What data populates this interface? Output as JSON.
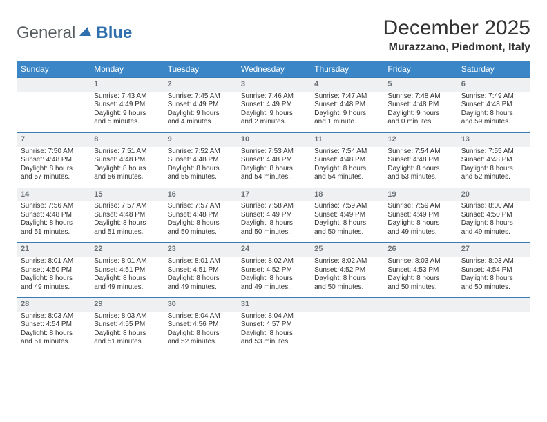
{
  "brand": {
    "word1": "General",
    "word2": "Blue",
    "logo_gray": "#555b5f",
    "logo_blue": "#2f6fae",
    "sail_color": "#2f6fae"
  },
  "title": "December 2025",
  "location": "Murazzano, Piedmont, Italy",
  "colors": {
    "header_bg": "#3b86c6",
    "header_border": "#3a7ab5",
    "daynum_bg": "#eef0f1",
    "daynum_text": "#6a7278",
    "body_text": "#333333",
    "page_bg": "#ffffff"
  },
  "day_labels": [
    "Sunday",
    "Monday",
    "Tuesday",
    "Wednesday",
    "Thursday",
    "Friday",
    "Saturday"
  ],
  "weeks": [
    [
      {
        "num": "",
        "sunrise": "",
        "sunset": "",
        "day1": "",
        "day2": ""
      },
      {
        "num": "1",
        "sunrise": "Sunrise: 7:43 AM",
        "sunset": "Sunset: 4:49 PM",
        "day1": "Daylight: 9 hours",
        "day2": "and 5 minutes."
      },
      {
        "num": "2",
        "sunrise": "Sunrise: 7:45 AM",
        "sunset": "Sunset: 4:49 PM",
        "day1": "Daylight: 9 hours",
        "day2": "and 4 minutes."
      },
      {
        "num": "3",
        "sunrise": "Sunrise: 7:46 AM",
        "sunset": "Sunset: 4:49 PM",
        "day1": "Daylight: 9 hours",
        "day2": "and 2 minutes."
      },
      {
        "num": "4",
        "sunrise": "Sunrise: 7:47 AM",
        "sunset": "Sunset: 4:48 PM",
        "day1": "Daylight: 9 hours",
        "day2": "and 1 minute."
      },
      {
        "num": "5",
        "sunrise": "Sunrise: 7:48 AM",
        "sunset": "Sunset: 4:48 PM",
        "day1": "Daylight: 9 hours",
        "day2": "and 0 minutes."
      },
      {
        "num": "6",
        "sunrise": "Sunrise: 7:49 AM",
        "sunset": "Sunset: 4:48 PM",
        "day1": "Daylight: 8 hours",
        "day2": "and 59 minutes."
      }
    ],
    [
      {
        "num": "7",
        "sunrise": "Sunrise: 7:50 AM",
        "sunset": "Sunset: 4:48 PM",
        "day1": "Daylight: 8 hours",
        "day2": "and 57 minutes."
      },
      {
        "num": "8",
        "sunrise": "Sunrise: 7:51 AM",
        "sunset": "Sunset: 4:48 PM",
        "day1": "Daylight: 8 hours",
        "day2": "and 56 minutes."
      },
      {
        "num": "9",
        "sunrise": "Sunrise: 7:52 AM",
        "sunset": "Sunset: 4:48 PM",
        "day1": "Daylight: 8 hours",
        "day2": "and 55 minutes."
      },
      {
        "num": "10",
        "sunrise": "Sunrise: 7:53 AM",
        "sunset": "Sunset: 4:48 PM",
        "day1": "Daylight: 8 hours",
        "day2": "and 54 minutes."
      },
      {
        "num": "11",
        "sunrise": "Sunrise: 7:54 AM",
        "sunset": "Sunset: 4:48 PM",
        "day1": "Daylight: 8 hours",
        "day2": "and 54 minutes."
      },
      {
        "num": "12",
        "sunrise": "Sunrise: 7:54 AM",
        "sunset": "Sunset: 4:48 PM",
        "day1": "Daylight: 8 hours",
        "day2": "and 53 minutes."
      },
      {
        "num": "13",
        "sunrise": "Sunrise: 7:55 AM",
        "sunset": "Sunset: 4:48 PM",
        "day1": "Daylight: 8 hours",
        "day2": "and 52 minutes."
      }
    ],
    [
      {
        "num": "14",
        "sunrise": "Sunrise: 7:56 AM",
        "sunset": "Sunset: 4:48 PM",
        "day1": "Daylight: 8 hours",
        "day2": "and 51 minutes."
      },
      {
        "num": "15",
        "sunrise": "Sunrise: 7:57 AM",
        "sunset": "Sunset: 4:48 PM",
        "day1": "Daylight: 8 hours",
        "day2": "and 51 minutes."
      },
      {
        "num": "16",
        "sunrise": "Sunrise: 7:57 AM",
        "sunset": "Sunset: 4:48 PM",
        "day1": "Daylight: 8 hours",
        "day2": "and 50 minutes."
      },
      {
        "num": "17",
        "sunrise": "Sunrise: 7:58 AM",
        "sunset": "Sunset: 4:49 PM",
        "day1": "Daylight: 8 hours",
        "day2": "and 50 minutes."
      },
      {
        "num": "18",
        "sunrise": "Sunrise: 7:59 AM",
        "sunset": "Sunset: 4:49 PM",
        "day1": "Daylight: 8 hours",
        "day2": "and 50 minutes."
      },
      {
        "num": "19",
        "sunrise": "Sunrise: 7:59 AM",
        "sunset": "Sunset: 4:49 PM",
        "day1": "Daylight: 8 hours",
        "day2": "and 49 minutes."
      },
      {
        "num": "20",
        "sunrise": "Sunrise: 8:00 AM",
        "sunset": "Sunset: 4:50 PM",
        "day1": "Daylight: 8 hours",
        "day2": "and 49 minutes."
      }
    ],
    [
      {
        "num": "21",
        "sunrise": "Sunrise: 8:01 AM",
        "sunset": "Sunset: 4:50 PM",
        "day1": "Daylight: 8 hours",
        "day2": "and 49 minutes."
      },
      {
        "num": "22",
        "sunrise": "Sunrise: 8:01 AM",
        "sunset": "Sunset: 4:51 PM",
        "day1": "Daylight: 8 hours",
        "day2": "and 49 minutes."
      },
      {
        "num": "23",
        "sunrise": "Sunrise: 8:01 AM",
        "sunset": "Sunset: 4:51 PM",
        "day1": "Daylight: 8 hours",
        "day2": "and 49 minutes."
      },
      {
        "num": "24",
        "sunrise": "Sunrise: 8:02 AM",
        "sunset": "Sunset: 4:52 PM",
        "day1": "Daylight: 8 hours",
        "day2": "and 49 minutes."
      },
      {
        "num": "25",
        "sunrise": "Sunrise: 8:02 AM",
        "sunset": "Sunset: 4:52 PM",
        "day1": "Daylight: 8 hours",
        "day2": "and 50 minutes."
      },
      {
        "num": "26",
        "sunrise": "Sunrise: 8:03 AM",
        "sunset": "Sunset: 4:53 PM",
        "day1": "Daylight: 8 hours",
        "day2": "and 50 minutes."
      },
      {
        "num": "27",
        "sunrise": "Sunrise: 8:03 AM",
        "sunset": "Sunset: 4:54 PM",
        "day1": "Daylight: 8 hours",
        "day2": "and 50 minutes."
      }
    ],
    [
      {
        "num": "28",
        "sunrise": "Sunrise: 8:03 AM",
        "sunset": "Sunset: 4:54 PM",
        "day1": "Daylight: 8 hours",
        "day2": "and 51 minutes."
      },
      {
        "num": "29",
        "sunrise": "Sunrise: 8:03 AM",
        "sunset": "Sunset: 4:55 PM",
        "day1": "Daylight: 8 hours",
        "day2": "and 51 minutes."
      },
      {
        "num": "30",
        "sunrise": "Sunrise: 8:04 AM",
        "sunset": "Sunset: 4:56 PM",
        "day1": "Daylight: 8 hours",
        "day2": "and 52 minutes."
      },
      {
        "num": "31",
        "sunrise": "Sunrise: 8:04 AM",
        "sunset": "Sunset: 4:57 PM",
        "day1": "Daylight: 8 hours",
        "day2": "and 53 minutes."
      },
      {
        "num": "",
        "sunrise": "",
        "sunset": "",
        "day1": "",
        "day2": ""
      },
      {
        "num": "",
        "sunrise": "",
        "sunset": "",
        "day1": "",
        "day2": ""
      },
      {
        "num": "",
        "sunrise": "",
        "sunset": "",
        "day1": "",
        "day2": ""
      }
    ]
  ]
}
